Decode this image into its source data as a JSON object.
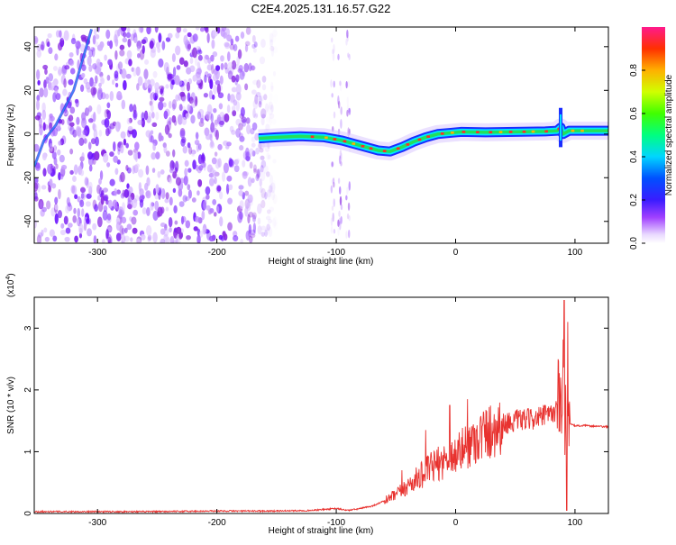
{
  "title": "C2E4.2025.131.16.57.G22",
  "colors": {
    "snr_line": "#e8322f",
    "track_outer": "#1a2cff",
    "track_mid": "#00e5ff",
    "track_core": "#22e05a",
    "track_peak": "#ff2a2a",
    "noise": "#8a2be2"
  },
  "chart_data": [
    {
      "type": "heatmap",
      "name": "spectrogram",
      "xlabel": "Height of straight line (km)",
      "ylabel": "Frequency (Hz)",
      "xlim": [
        -353,
        128
      ],
      "ylim": [
        -50,
        49
      ],
      "xticks": [
        -300,
        -200,
        -100,
        0,
        100
      ],
      "yticks": [
        -40,
        -20,
        0,
        20,
        40
      ],
      "colorbar": {
        "label": "Normalized spectral amplitude",
        "range": [
          0,
          1
        ],
        "ticks": [
          "0.0",
          "0.2",
          "0.4",
          "0.6",
          "0.8"
        ],
        "tick_values": [
          0.0,
          0.2,
          0.4,
          0.6,
          0.8
        ]
      },
      "noise_region_x": [
        -353,
        -150
      ],
      "track": {
        "x": [
          -165,
          -150,
          -130,
          -110,
          -95,
          -85,
          -75,
          -65,
          -55,
          -45,
          -35,
          -25,
          -15,
          -5,
          5,
          25,
          50,
          75,
          85,
          88,
          90,
          95,
          110,
          128
        ],
        "y": [
          -2,
          -1.5,
          -1,
          -1.5,
          -3,
          -4.5,
          -6,
          -7.5,
          -8,
          -6,
          -3.5,
          -1.5,
          0,
          0.5,
          1,
          0.8,
          1,
          1.2,
          1.5,
          3,
          0,
          1.5,
          1.5,
          1.5
        ]
      },
      "oblique_track": {
        "x": [
          -353,
          -345,
          -335,
          -320,
          -305
        ],
        "y": [
          -15,
          -3,
          4,
          20,
          48
        ]
      }
    },
    {
      "type": "line",
      "name": "snr",
      "xlabel": "Height of straight line (km)",
      "ylabel": "SNR (10 * v/v)",
      "multiplier": "(x10",
      "multiplier_exp": "4",
      "multiplier_close": ")",
      "xlim": [
        -353,
        128
      ],
      "ylim": [
        0,
        3.5
      ],
      "xticks": [
        -300,
        -200,
        -100,
        0,
        100
      ],
      "yticks": [
        0,
        1,
        2,
        3
      ],
      "series": [
        {
          "x": [
            -353,
            -300,
            -250,
            -200,
            -150,
            -120,
            -100,
            -90,
            -80,
            -70,
            -60,
            -50,
            -40,
            -30,
            -20,
            -10,
            0,
            10,
            20,
            30,
            40,
            50,
            60,
            70,
            80,
            85,
            88,
            90,
            92,
            95,
            100,
            110,
            128
          ],
          "y": [
            0.03,
            0.03,
            0.03,
            0.04,
            0.04,
            0.05,
            0.08,
            0.05,
            0.08,
            0.12,
            0.2,
            0.3,
            0.45,
            0.6,
            0.75,
            0.85,
            0.95,
            1.1,
            1.25,
            1.35,
            1.45,
            1.5,
            1.52,
            1.55,
            1.6,
            1.7,
            1.9,
            2.1,
            1.6,
            1.45,
            1.42,
            1.42,
            1.4
          ],
          "spikes": [
            {
              "x": -45,
              "y": 0.7
            },
            {
              "x": -25,
              "y": 1.35
            },
            {
              "x": -5,
              "y": 1.75
            },
            {
              "x": 10,
              "y": 1.85
            },
            {
              "x": 75,
              "y": 1.75
            },
            {
              "x": 88,
              "y": 2.2
            },
            {
              "x": 91,
              "y": 3.45
            },
            {
              "x": 93,
              "y": 0.05
            },
            {
              "x": 94,
              "y": 3.1
            }
          ]
        }
      ]
    }
  ]
}
